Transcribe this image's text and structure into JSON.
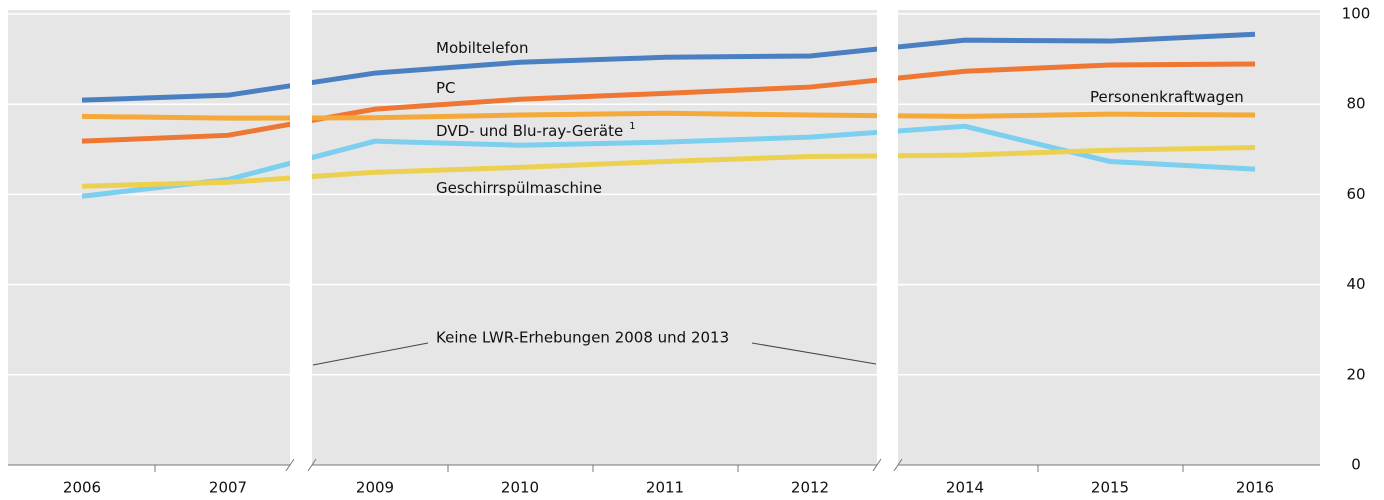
{
  "chart_data": {
    "type": "line",
    "categories": [
      "2006",
      "2007",
      "2009",
      "2010",
      "2011",
      "2012",
      "2014",
      "2015",
      "2016"
    ],
    "series": [
      {
        "name": "Mobiltelefon",
        "color": "#4a7fc1",
        "values": [
          80.9,
          82,
          86.9,
          89.3,
          90.4,
          90.7,
          94.2,
          94,
          95.5
        ]
      },
      {
        "name": "PC",
        "color": "#ee7733",
        "values": [
          71.8,
          73.1,
          78.9,
          81.1,
          82.4,
          83.8,
          87.3,
          88.7,
          88.9
        ]
      },
      {
        "name": "Personenkraftwagen",
        "color": "#f5a93a",
        "values": [
          77.3,
          76.9,
          77,
          77.6,
          78,
          77.6,
          77.3,
          77.8,
          77.6
        ]
      },
      {
        "name": "DVD- und Blu-ray-Geräte",
        "note": "1",
        "color": "#7ccfee",
        "values": [
          59.6,
          63.3,
          71.8,
          70.9,
          71.6,
          72.7,
          75.1,
          67.3,
          65.6
        ]
      },
      {
        "name": "Geschirrspülmaschine",
        "color": "#ecd050",
        "values": [
          61.8,
          62.7,
          64.9,
          66,
          67.3,
          68.4,
          68.7,
          69.8,
          70.4
        ]
      }
    ],
    "annotation": "Keine LWR-Erhebungen 2008 und 2013",
    "ylim": [
      0,
      100
    ],
    "yticks": [
      0,
      20,
      40,
      60,
      80,
      100
    ],
    "grid": true
  }
}
